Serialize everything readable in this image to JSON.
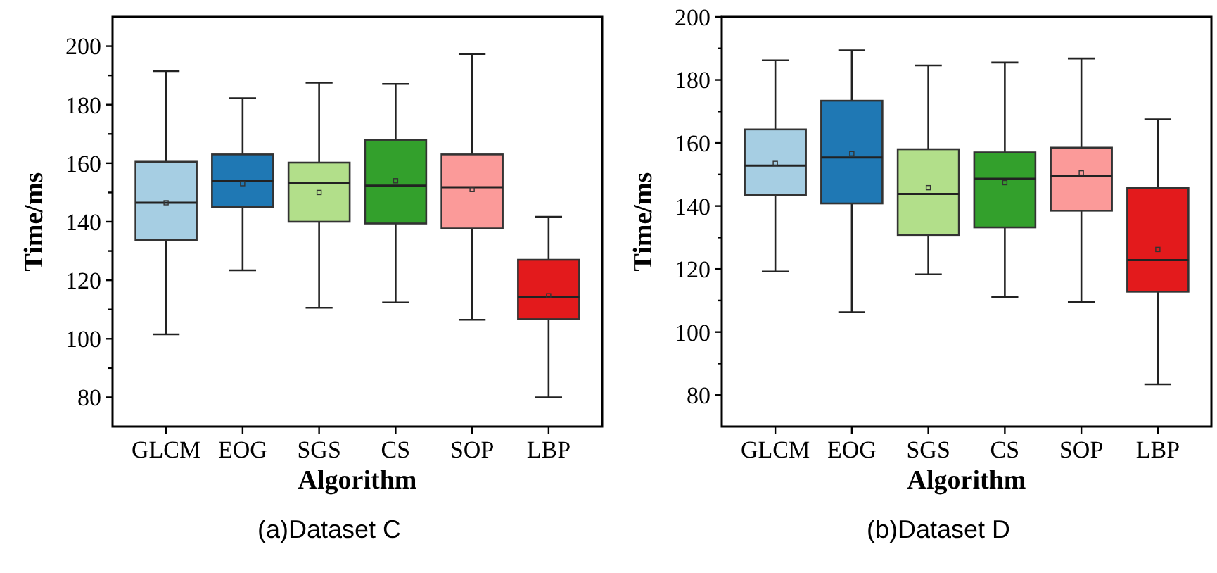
{
  "chart_data": [
    {
      "type": "box",
      "xlabel": "Algorithm",
      "ylabel": "Time/ms",
      "annotations": [
        "(a)Dataset C"
      ],
      "categories": [
        "GLCM",
        "EOG",
        "SGS",
        "CS",
        "SOP",
        "LBP"
      ],
      "colors": [
        "#a6cee3",
        "#1f78b4",
        "#b2df8a",
        "#33a02c",
        "#fb9a99",
        "#e31a1c"
      ],
      "ylim": [
        70,
        210
      ],
      "yticks": [
        {
          "value": 80,
          "label": "80"
        },
        {
          "value": 90,
          "label": null
        },
        {
          "value": 100,
          "label": "100"
        },
        {
          "value": 110,
          "label": null
        },
        {
          "value": 120,
          "label": "120"
        },
        {
          "value": 130,
          "label": null
        },
        {
          "value": 140,
          "label": "140"
        },
        {
          "value": 150,
          "label": null
        },
        {
          "value": 160,
          "label": "160"
        },
        {
          "value": 170,
          "label": null
        },
        {
          "value": 180,
          "label": "180"
        },
        {
          "value": 190,
          "label": null
        },
        {
          "value": 200,
          "label": "200"
        }
      ],
      "boxes": [
        {
          "low": 101.5,
          "q1": 133.8,
          "median": 146.5,
          "q3": 160.5,
          "high": 191.5,
          "mean": 146.5
        },
        {
          "low": 123.4,
          "q1": 145,
          "median": 154,
          "q3": 163,
          "high": 182.2,
          "mean": 153
        },
        {
          "low": 110.6,
          "q1": 140,
          "median": 153.3,
          "q3": 160.2,
          "high": 187.5,
          "mean": 150
        },
        {
          "low": 112.4,
          "q1": 139.4,
          "median": 152.3,
          "q3": 168,
          "high": 187.1,
          "mean": 154
        },
        {
          "low": 106.5,
          "q1": 137.7,
          "median": 151.8,
          "q3": 163,
          "high": 197.3,
          "mean": 151
        },
        {
          "low": 80,
          "q1": 106.7,
          "median": 114.4,
          "q3": 127,
          "high": 141.7,
          "mean": 114.7
        }
      ]
    },
    {
      "type": "box",
      "xlabel": "Algorithm",
      "ylabel": "Time/ms",
      "annotations": [
        "(b)Dataset D"
      ],
      "categories": [
        "GLCM",
        "EOG",
        "SGS",
        "CS",
        "SOP",
        "LBP"
      ],
      "colors": [
        "#a6cee3",
        "#1f78b4",
        "#b2df8a",
        "#33a02c",
        "#fb9a99",
        "#e31a1c"
      ],
      "ylim": [
        70,
        200
      ],
      "yticks": [
        {
          "value": 80,
          "label": "80"
        },
        {
          "value": 90,
          "label": null
        },
        {
          "value": 100,
          "label": "100"
        },
        {
          "value": 110,
          "label": null
        },
        {
          "value": 120,
          "label": "120"
        },
        {
          "value": 130,
          "label": null
        },
        {
          "value": 140,
          "label": "140"
        },
        {
          "value": 150,
          "label": null
        },
        {
          "value": 160,
          "label": "160"
        },
        {
          "value": 170,
          "label": null
        },
        {
          "value": 180,
          "label": "180"
        },
        {
          "value": 190,
          "label": null
        },
        {
          "value": 200,
          "label": "200"
        }
      ],
      "boxes": [
        {
          "low": 119.2,
          "q1": 143.5,
          "median": 152.8,
          "q3": 164.3,
          "high": 186.2,
          "mean": 153.5
        },
        {
          "low": 106.3,
          "q1": 140.8,
          "median": 155.4,
          "q3": 173.4,
          "high": 189.4,
          "mean": 156.6
        },
        {
          "low": 118.3,
          "q1": 130.8,
          "median": 143.8,
          "q3": 158,
          "high": 184.6,
          "mean": 145.8
        },
        {
          "low": 111.1,
          "q1": 133.2,
          "median": 148.6,
          "q3": 157,
          "high": 185.5,
          "mean": 147.4
        },
        {
          "low": 109.5,
          "q1": 138.5,
          "median": 149.5,
          "q3": 158.5,
          "high": 186.8,
          "mean": 150.5
        },
        {
          "low": 83.4,
          "q1": 112.8,
          "median": 122.8,
          "q3": 145.7,
          "high": 167.5,
          "mean": 126.2
        }
      ]
    }
  ]
}
